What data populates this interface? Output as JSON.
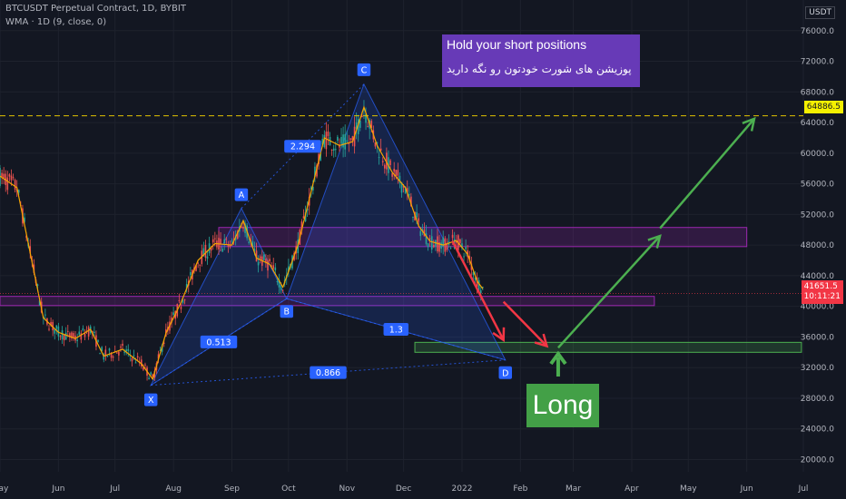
{
  "header": {
    "symbol_line": "BTCUSDT Perpetual Contract, 1D, BYBIT",
    "indicator_line": "WMA · 1D (9, close, 0)"
  },
  "axis": {
    "currency": "USDT"
  },
  "annotations": {
    "callout_title": "Hold your short positions",
    "callout_subtitle": "پوزیشن های شورت خودتون رو نگه دارید",
    "long_label": "Long",
    "target_price": "64886.5",
    "current_price": "41651.5",
    "countdown": "10:11:21"
  },
  "colors": {
    "background": "#131722",
    "up_candle": "#26a69a",
    "down_candle": "#ef5350",
    "wma": "#f7a600",
    "pattern_fill": "#2962ff",
    "zone_purple": "#9c27b0",
    "zone_green": "#4caf50",
    "arrow_red": "#f23645",
    "arrow_green": "#4caf50",
    "target_line": "#e2c300",
    "callout": "#673ab7"
  },
  "chart_data": {
    "type": "candlestick",
    "title": "BTCUSDT Perpetual Contract, 1D, BYBIT",
    "x_axis": {
      "type": "date",
      "tick_labels": [
        "May",
        "Jun",
        "Jul",
        "Aug",
        "Sep",
        "Oct",
        "Nov",
        "Dec",
        "2022",
        "Feb",
        "Mar",
        "Apr",
        "May",
        "Jun",
        "Jul"
      ],
      "ticks": [
        "2021-05-01",
        "2021-06-01",
        "2021-07-01",
        "2021-08-01",
        "2021-09-01",
        "2021-10-01",
        "2021-11-01",
        "2021-12-01",
        "2022-01-01",
        "2022-02-01",
        "2022-03-01",
        "2022-04-01",
        "2022-05-01",
        "2022-06-01",
        "2022-07-01"
      ],
      "range": [
        "2021-05-01",
        "2022-07-01"
      ]
    },
    "y_axis": {
      "ticks": [
        20000,
        24000,
        28000,
        32000,
        36000,
        40000,
        44000,
        48000,
        52000,
        56000,
        60000,
        64000,
        68000,
        72000,
        76000
      ],
      "tick_labels": [
        "20000.0",
        "24000.0",
        "28000.0",
        "32000.0",
        "36000.0",
        "40000.0",
        "44000.0",
        "48000.0",
        "52000.0",
        "56000.0",
        "60000.0",
        "64000.0",
        "68000.0",
        "72000.0",
        "76000.0"
      ],
      "range": [
        18400,
        80000
      ],
      "position": "right"
    },
    "series": [
      {
        "name": "WMA (9, close, 0)",
        "points": [
          {
            "x": "2021-05-01",
            "y": 57000
          },
          {
            "x": "2021-05-10",
            "y": 55500
          },
          {
            "x": "2021-05-17",
            "y": 47000
          },
          {
            "x": "2021-05-24",
            "y": 38500
          },
          {
            "x": "2021-06-01",
            "y": 36600
          },
          {
            "x": "2021-06-10",
            "y": 35800
          },
          {
            "x": "2021-06-18",
            "y": 37000
          },
          {
            "x": "2021-06-25",
            "y": 33500
          },
          {
            "x": "2021-07-05",
            "y": 34400
          },
          {
            "x": "2021-07-15",
            "y": 32500
          },
          {
            "x": "2021-07-21",
            "y": 30500
          },
          {
            "x": "2021-07-28",
            "y": 36500
          },
          {
            "x": "2021-08-05",
            "y": 40500
          },
          {
            "x": "2021-08-14",
            "y": 46000
          },
          {
            "x": "2021-08-23",
            "y": 48200
          },
          {
            "x": "2021-09-01",
            "y": 48000
          },
          {
            "x": "2021-09-07",
            "y": 51200
          },
          {
            "x": "2021-09-14",
            "y": 46300
          },
          {
            "x": "2021-09-21",
            "y": 45500
          },
          {
            "x": "2021-09-28",
            "y": 42500
          },
          {
            "x": "2021-10-06",
            "y": 48000
          },
          {
            "x": "2021-10-14",
            "y": 56000
          },
          {
            "x": "2021-10-20",
            "y": 62000
          },
          {
            "x": "2021-10-28",
            "y": 61000
          },
          {
            "x": "2021-11-04",
            "y": 61500
          },
          {
            "x": "2021-11-10",
            "y": 66000
          },
          {
            "x": "2021-11-17",
            "y": 61000
          },
          {
            "x": "2021-11-25",
            "y": 57500
          },
          {
            "x": "2021-12-02",
            "y": 55500
          },
          {
            "x": "2021-12-09",
            "y": 50500
          },
          {
            "x": "2021-12-15",
            "y": 48500
          },
          {
            "x": "2021-12-22",
            "y": 48000
          },
          {
            "x": "2021-12-29",
            "y": 48600
          },
          {
            "x": "2022-01-04",
            "y": 46800
          },
          {
            "x": "2022-01-09",
            "y": 43300
          },
          {
            "x": "2022-01-12",
            "y": 42300
          }
        ]
      }
    ],
    "candles_range": {
      "start": "2021-05-01",
      "end": "2022-01-12"
    },
    "harmonic_pattern": {
      "points": [
        {
          "label": "X",
          "x": "2021-07-20",
          "y": 29700
        },
        {
          "label": "A",
          "x": "2021-09-06",
          "y": 52800
        },
        {
          "label": "B",
          "x": "2021-09-30",
          "y": 41000
        },
        {
          "label": "C",
          "x": "2021-11-10",
          "y": 69000
        },
        {
          "label": "D",
          "x": "2022-01-24",
          "y": 33000
        }
      ],
      "ratios": [
        {
          "label": "0.513",
          "connects": [
            "X",
            "B"
          ]
        },
        {
          "label": "2.294",
          "connects": [
            "A",
            "C"
          ]
        },
        {
          "label": "1.3",
          "connects": [
            "B",
            "D"
          ]
        },
        {
          "label": "0.866",
          "connects": [
            "X",
            "D"
          ]
        }
      ]
    },
    "zones": [
      {
        "name": "upper",
        "x_start": "2021-08-25",
        "x_end": "2022-06-01",
        "y_low": 47800,
        "y_high": 50300
      },
      {
        "name": "middle",
        "x_start": "2021-05-01",
        "x_end": "2022-04-13",
        "y_low": 40100,
        "y_high": 41300
      },
      {
        "name": "target",
        "x_start": "2021-12-07",
        "x_end": "2022-06-30",
        "y_low": 34000,
        "y_high": 35300
      }
    ],
    "target_level": 64886.5,
    "current_price": 41651.5,
    "legend": "none",
    "grid": true
  }
}
